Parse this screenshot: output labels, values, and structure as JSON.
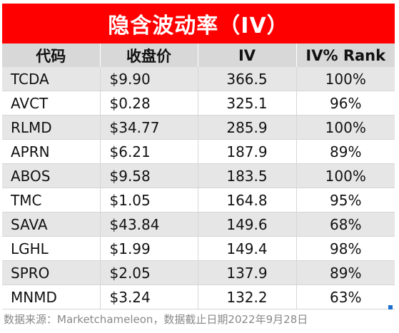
{
  "title": "隐含波动率（IV）",
  "columns": {
    "symbol": "代码",
    "price": "收盘价",
    "iv": "IV",
    "rank": "IV% Rank"
  },
  "rows": [
    {
      "symbol": "TCDA",
      "price": "$9.90",
      "iv": "366.5",
      "rank": "100%"
    },
    {
      "symbol": "AVCT",
      "price": "$0.28",
      "iv": "325.1",
      "rank": "96%"
    },
    {
      "symbol": "RLMD",
      "price": "$34.77",
      "iv": "285.9",
      "rank": "100%"
    },
    {
      "symbol": "APRN",
      "price": "$6.21",
      "iv": "187.9",
      "rank": "89%"
    },
    {
      "symbol": "ABOS",
      "price": "$9.58",
      "iv": "183.5",
      "rank": "100%"
    },
    {
      "symbol": "TMC",
      "price": "$1.05",
      "iv": "164.8",
      "rank": "95%"
    },
    {
      "symbol": "SAVA",
      "price": "$43.84",
      "iv": "149.6",
      "rank": "68%"
    },
    {
      "symbol": "LGHL",
      "price": "$1.99",
      "iv": "149.4",
      "rank": "98%"
    },
    {
      "symbol": "SPRO",
      "price": "$2.05",
      "iv": "137.9",
      "rank": "89%"
    },
    {
      "symbol": "MNMD",
      "price": "$3.24",
      "iv": "132.2",
      "rank": "63%"
    }
  ],
  "footer": "数据来源：Marketchameleon，数据截止日期2022年9月28日",
  "colors": {
    "title_background": "#ff0000",
    "header_background": "#d8d8d8",
    "stripe_background": "#e6e6e6"
  }
}
